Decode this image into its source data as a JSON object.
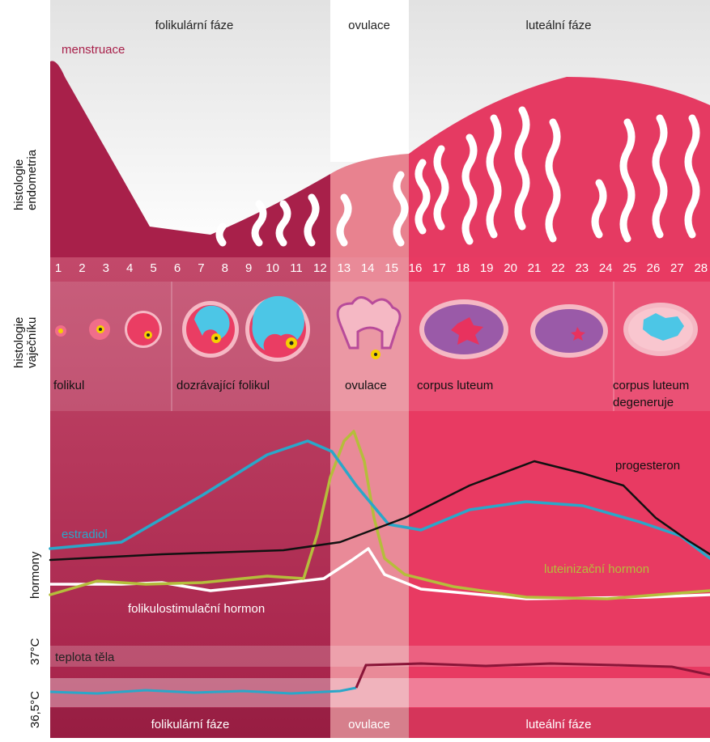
{
  "header": {
    "phases": [
      "folikulární fáze",
      "ovulace",
      "luteální fáze"
    ]
  },
  "menstruation": "menstruace",
  "row_labels": {
    "endometrium": [
      "histologie",
      "endometria"
    ],
    "ovary": [
      "histologie",
      "vaječníku"
    ],
    "hormones": [
      "hormony"
    ]
  },
  "days": [
    1,
    2,
    3,
    4,
    5,
    6,
    7,
    8,
    9,
    10,
    11,
    12,
    13,
    14,
    15,
    16,
    17,
    18,
    19,
    20,
    21,
    22,
    23,
    24,
    25,
    26,
    27,
    28
  ],
  "ovary_labels": [
    [
      "folikul"
    ],
    [
      "dozrávající folikul"
    ],
    [
      "ovulace"
    ],
    [
      "corpus luteum"
    ],
    [
      "corpus luteum",
      "degeneruje"
    ]
  ],
  "hormones": {
    "estradiol": "estradiol",
    "progesterone": "progesteron",
    "lh": "luteinizační hormon",
    "fsh": "folikulostimulační hormon"
  },
  "temperature": {
    "title": "teplota těla",
    "labels": [
      "37°C",
      "36,5°C"
    ]
  },
  "footer": {
    "phases": [
      "folikulární fáze",
      "ovulace",
      "luteální fáze"
    ]
  }
}
